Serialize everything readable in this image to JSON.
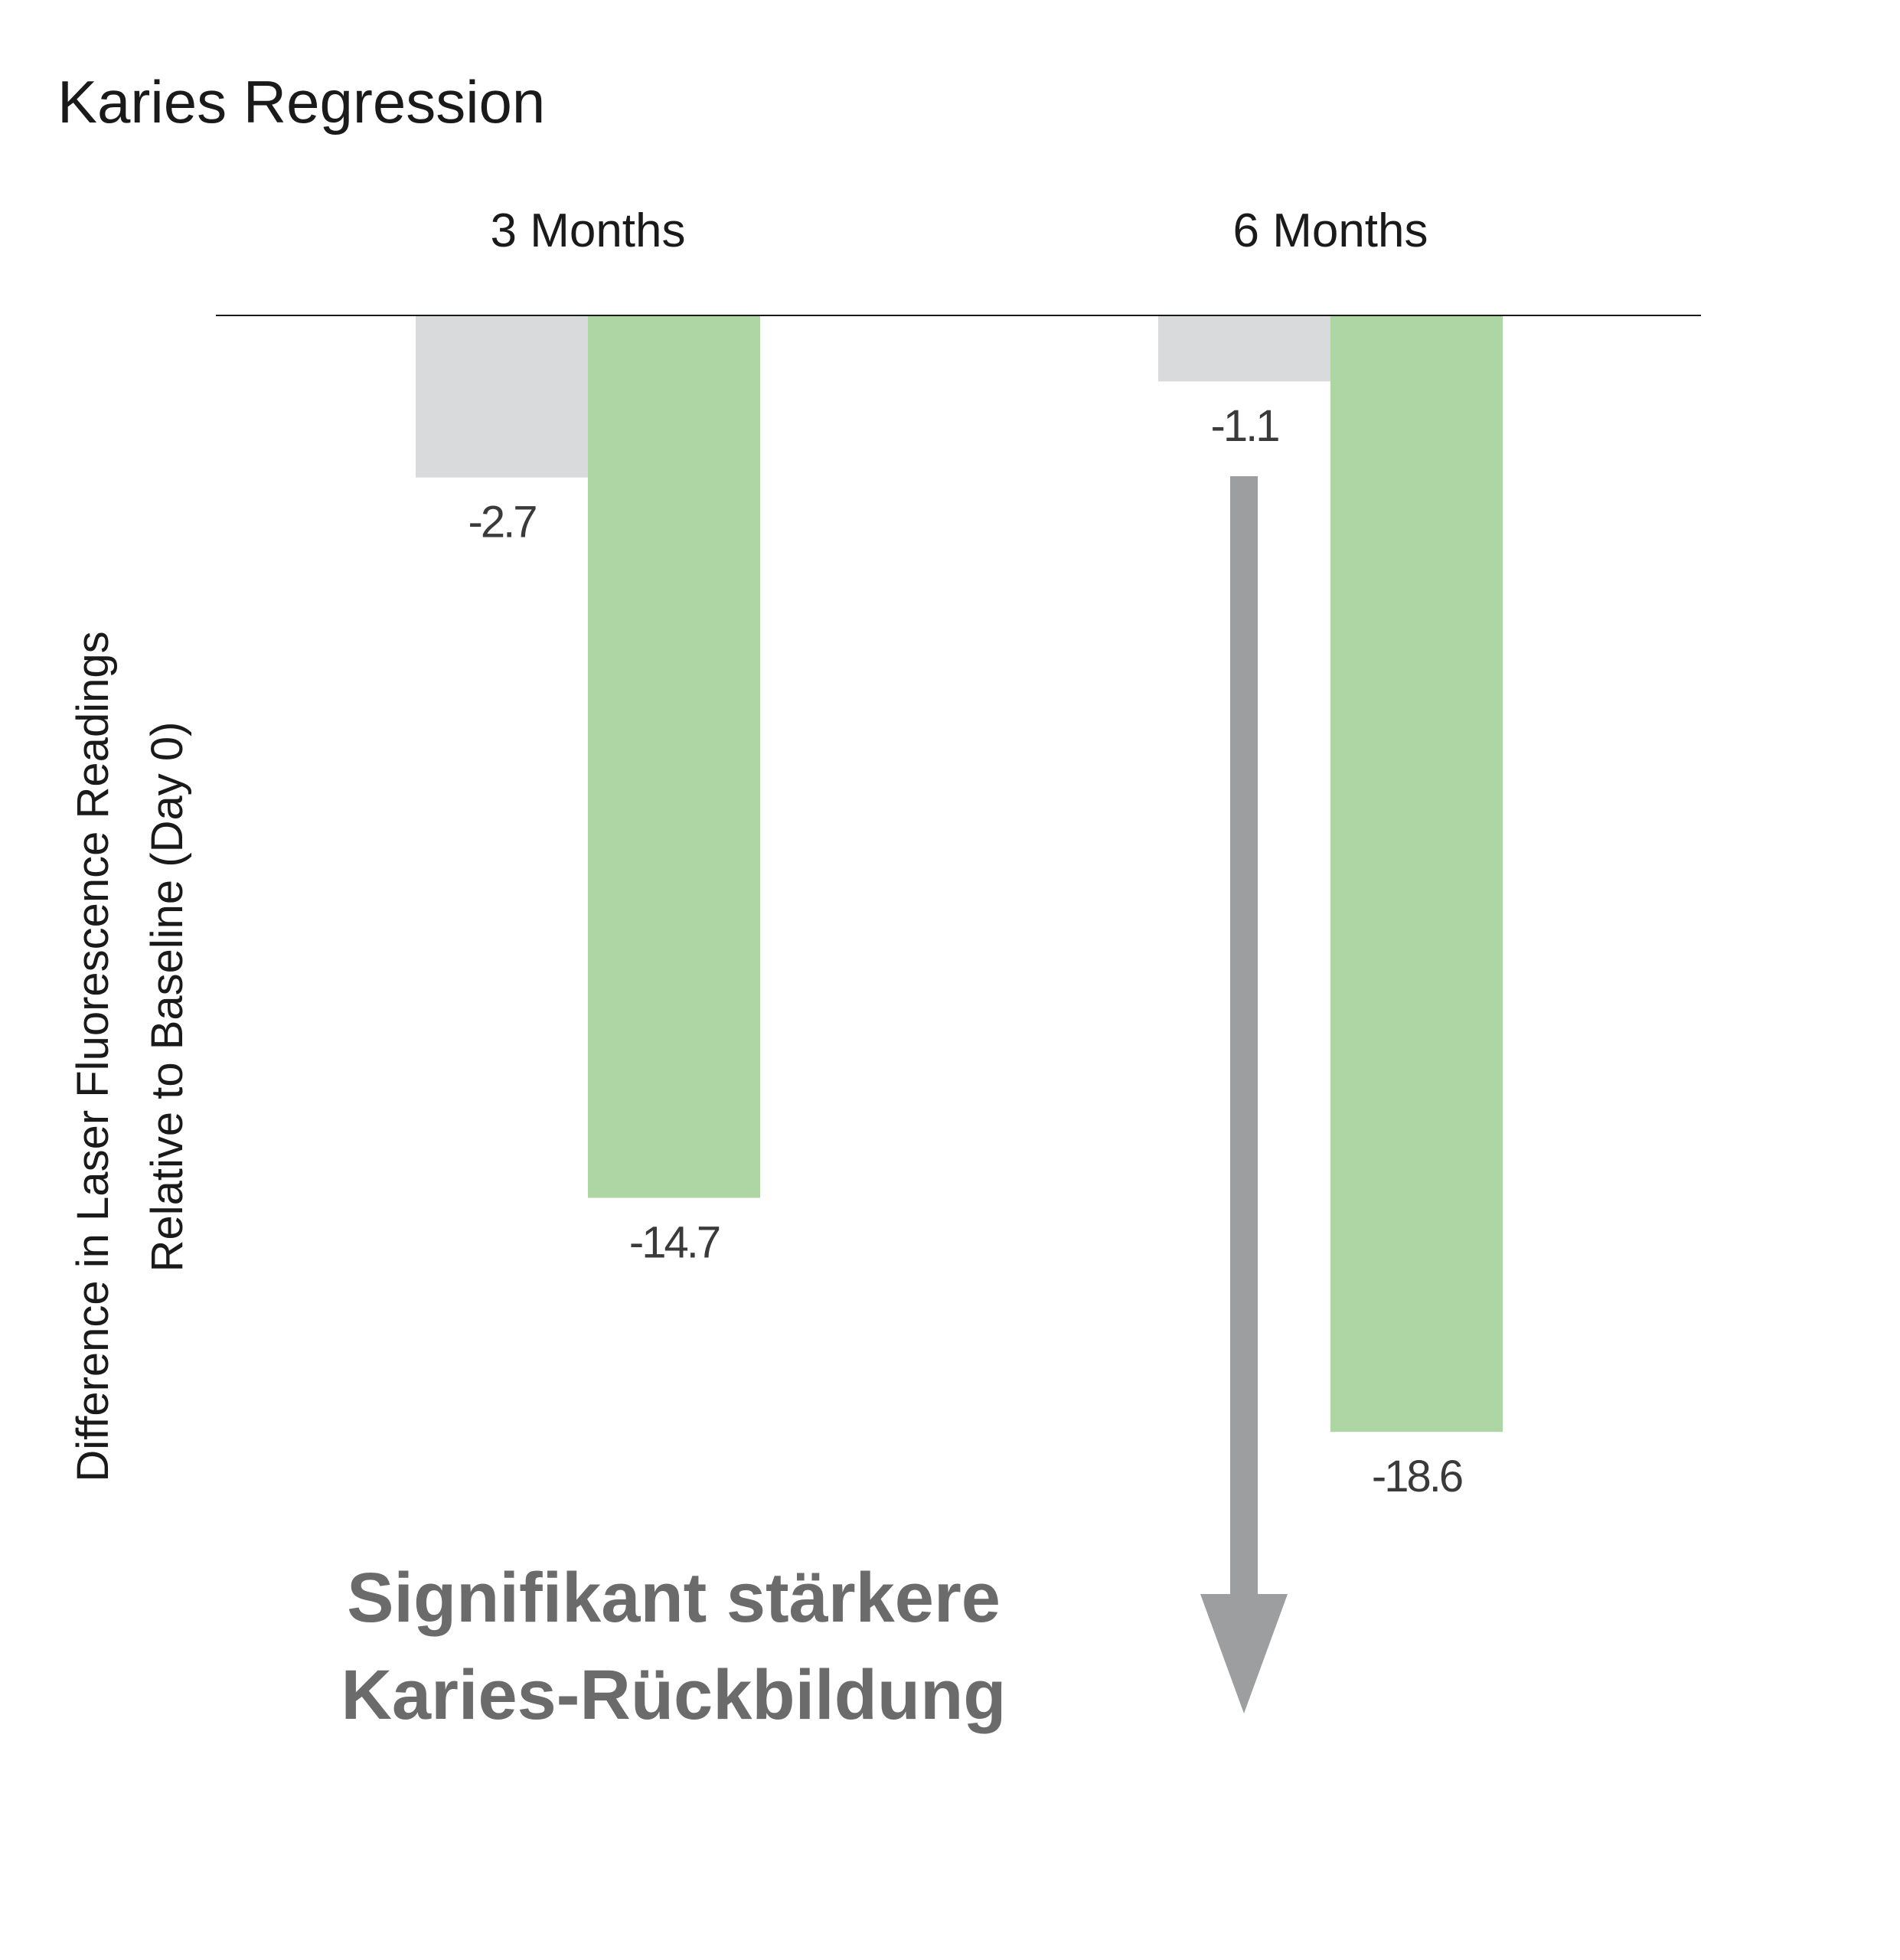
{
  "chart_data": {
    "type": "bar",
    "title": "Karies Regression",
    "categories": [
      "3 Months",
      "6 Months"
    ],
    "ylabel_lines": [
      "Difference in Laser Fluorescence Readings",
      "Relative to Baseline (Day 0)"
    ],
    "ylim": [
      -19.5,
      0
    ],
    "grid": false,
    "series": [
      {
        "values": [
          -2.7,
          -1.1
        ],
        "labels": [
          "-2.7",
          "-1.1"
        ],
        "color": "#d9dadc"
      },
      {
        "values": [
          -14.7,
          -18.6
        ],
        "labels": [
          "-14.7",
          "-18.6"
        ],
        "color": "#aed5a4"
      }
    ],
    "annotation": {
      "lines": [
        "Signifikant stärkere",
        "Karies-Rückbildung"
      ],
      "text_color": "#6b6b6b",
      "arrow_color": "#9d9ea0",
      "arrow_icon": "arrow-down-icon"
    }
  }
}
